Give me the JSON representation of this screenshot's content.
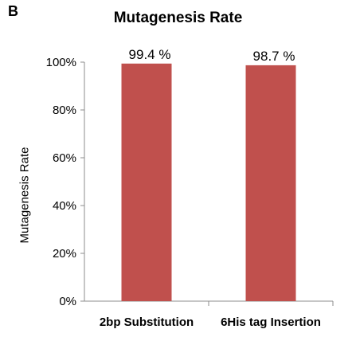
{
  "panel_label": "B",
  "chart_data": {
    "type": "bar",
    "title": "Mutagenesis Rate",
    "xlabel": "",
    "ylabel": "Mutagenesis Rate",
    "categories": [
      "2bp Substitution",
      "6His tag Insertion"
    ],
    "values": [
      99.4,
      98.7
    ],
    "data_labels": [
      "99.4 %",
      "98.7 %"
    ],
    "ylim": [
      0,
      100
    ],
    "yticks": [
      "0%",
      "20%",
      "40%",
      "60%",
      "80%",
      "100%"
    ],
    "bar_color": "#c0504d",
    "grid": false,
    "legend": "none"
  }
}
